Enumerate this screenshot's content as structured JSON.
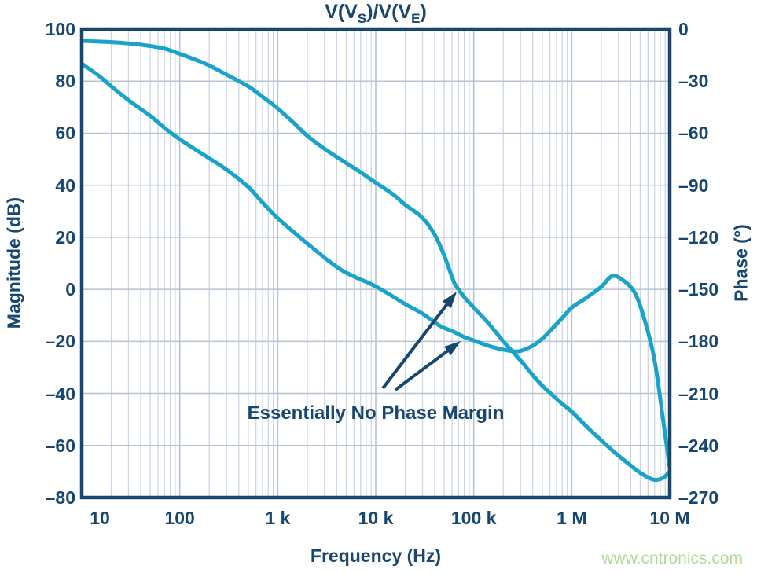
{
  "title": {
    "p1": "V(V",
    "sub1": "S",
    "p2": ")/V(V",
    "sub2": "E",
    "p3": ")"
  },
  "watermark": "www.cntronics.com",
  "colors": {
    "curve": "#1aa3c8",
    "axis_navy": "#17476e",
    "grid_minor": "#cdd6e2",
    "grid_major": "#b6c3d3",
    "watermark_green": "#aedb96",
    "background": "#ffffff"
  },
  "chart_data": {
    "type": "line",
    "title": "V(VS)/V(VE)",
    "xlabel": "Frequency (Hz)",
    "x_scale": "log",
    "x_range": [
      10,
      10000000
    ],
    "x_ticks": [
      {
        "f": 10,
        "label": "10"
      },
      {
        "f": 100,
        "label": "100"
      },
      {
        "f": 1000,
        "label": "1 k"
      },
      {
        "f": 10000,
        "label": "10 k"
      },
      {
        "f": 100000,
        "label": "100 k"
      },
      {
        "f": 1000000,
        "label": "1 M"
      },
      {
        "f": 10000000,
        "label": "10 M"
      }
    ],
    "left_axis": {
      "label": "Magnitude (dB)",
      "range": [
        -80,
        100
      ],
      "ticks": [
        {
          "v": 100,
          "label": "100"
        },
        {
          "v": 80,
          "label": "80"
        },
        {
          "v": 60,
          "label": "60"
        },
        {
          "v": 40,
          "label": "40"
        },
        {
          "v": 20,
          "label": "20"
        },
        {
          "v": 0,
          "label": "0"
        },
        {
          "v": -20,
          "label": "–20"
        },
        {
          "v": -40,
          "label": "–40"
        },
        {
          "v": -60,
          "label": "–60"
        },
        {
          "v": -80,
          "label": "–80"
        }
      ]
    },
    "right_axis": {
      "label": "Phase (°)",
      "range": [
        -270,
        0
      ],
      "ticks": [
        {
          "v": 0,
          "label": "0"
        },
        {
          "v": -30,
          "label": "–30"
        },
        {
          "v": -60,
          "label": "–60"
        },
        {
          "v": -90,
          "label": "–90"
        },
        {
          "v": -120,
          "label": "–120"
        },
        {
          "v": -150,
          "label": "–150"
        },
        {
          "v": -180,
          "label": "–180"
        },
        {
          "v": -210,
          "label": "–210"
        },
        {
          "v": -240,
          "label": "–240"
        },
        {
          "v": -270,
          "label": "–270"
        }
      ]
    },
    "grid": true,
    "minor_grid": true,
    "legend": "none",
    "series": [
      {
        "name": "magnitude_dB",
        "axis": "left",
        "points": [
          [
            10,
            95.5
          ],
          [
            15,
            95.2
          ],
          [
            20,
            95
          ],
          [
            30,
            94.5
          ],
          [
            50,
            93.5
          ],
          [
            70,
            92.5
          ],
          [
            100,
            90.5
          ],
          [
            150,
            88
          ],
          [
            200,
            86
          ],
          [
            300,
            82.5
          ],
          [
            500,
            78
          ],
          [
            700,
            74
          ],
          [
            1000,
            69.5
          ],
          [
            1500,
            63.5
          ],
          [
            2000,
            59
          ],
          [
            3000,
            54
          ],
          [
            5000,
            48.5
          ],
          [
            7000,
            45
          ],
          [
            10000,
            41
          ],
          [
            15000,
            36.5
          ],
          [
            20000,
            32.5
          ],
          [
            30000,
            27.5
          ],
          [
            40000,
            21
          ],
          [
            50000,
            13
          ],
          [
            63000,
            2.7
          ],
          [
            70000,
            0
          ],
          [
            80000,
            -3
          ],
          [
            100000,
            -7
          ],
          [
            130000,
            -11.5
          ],
          [
            160000,
            -15.5
          ],
          [
            200000,
            -20
          ],
          [
            250000,
            -24
          ],
          [
            320000,
            -28.5
          ],
          [
            400000,
            -33
          ],
          [
            500000,
            -37
          ],
          [
            630000,
            -40.5
          ],
          [
            800000,
            -44
          ],
          [
            1000000,
            -47
          ],
          [
            1400000,
            -52.5
          ],
          [
            2000000,
            -58
          ],
          [
            2800000,
            -63
          ],
          [
            3800000,
            -67
          ],
          [
            5000000,
            -70.5
          ],
          [
            6800000,
            -73.1
          ],
          [
            8500000,
            -72.5
          ],
          [
            10000000,
            -70
          ]
        ]
      },
      {
        "name": "phase_deg",
        "axis": "right",
        "points": [
          [
            10,
            -20
          ],
          [
            15,
            -27
          ],
          [
            20,
            -33
          ],
          [
            30,
            -41
          ],
          [
            50,
            -50
          ],
          [
            70,
            -57
          ],
          [
            100,
            -63.5
          ],
          [
            150,
            -70
          ],
          [
            200,
            -74.5
          ],
          [
            300,
            -81
          ],
          [
            500,
            -91
          ],
          [
            700,
            -100
          ],
          [
            1000,
            -109
          ],
          [
            1600,
            -119
          ],
          [
            2200,
            -125.5
          ],
          [
            3200,
            -133
          ],
          [
            4500,
            -139
          ],
          [
            6500,
            -143.5
          ],
          [
            9000,
            -147
          ],
          [
            13000,
            -152
          ],
          [
            20000,
            -158.5
          ],
          [
            30000,
            -164
          ],
          [
            45000,
            -171
          ],
          [
            60000,
            -174
          ],
          [
            80000,
            -177.5
          ],
          [
            100000,
            -179.5
          ],
          [
            150000,
            -183
          ],
          [
            220000,
            -185.2
          ],
          [
            290000,
            -185.7
          ],
          [
            400000,
            -182.5
          ],
          [
            500000,
            -178.5
          ],
          [
            600000,
            -174
          ],
          [
            800000,
            -166.5
          ],
          [
            1000000,
            -160.5
          ],
          [
            1400000,
            -155
          ],
          [
            2000000,
            -148.5
          ],
          [
            2550000,
            -142.5
          ],
          [
            3200000,
            -144
          ],
          [
            4350000,
            -151.5
          ],
          [
            5500000,
            -167
          ],
          [
            7000000,
            -191
          ],
          [
            8500000,
            -224
          ],
          [
            9300000,
            -240
          ],
          [
            10000000,
            -253
          ]
        ]
      }
    ],
    "annotation": {
      "text": "Essentially No Phase Margin",
      "arrows": [
        {
          "from": [
            487,
            494
          ],
          "to": [
            581,
            371
          ],
          "points_at": "0 dB gain crossover"
        },
        {
          "from": [
            503,
            496
          ],
          "to": [
            586,
            434
          ],
          "points_at": "phase = -180°"
        }
      ]
    }
  }
}
